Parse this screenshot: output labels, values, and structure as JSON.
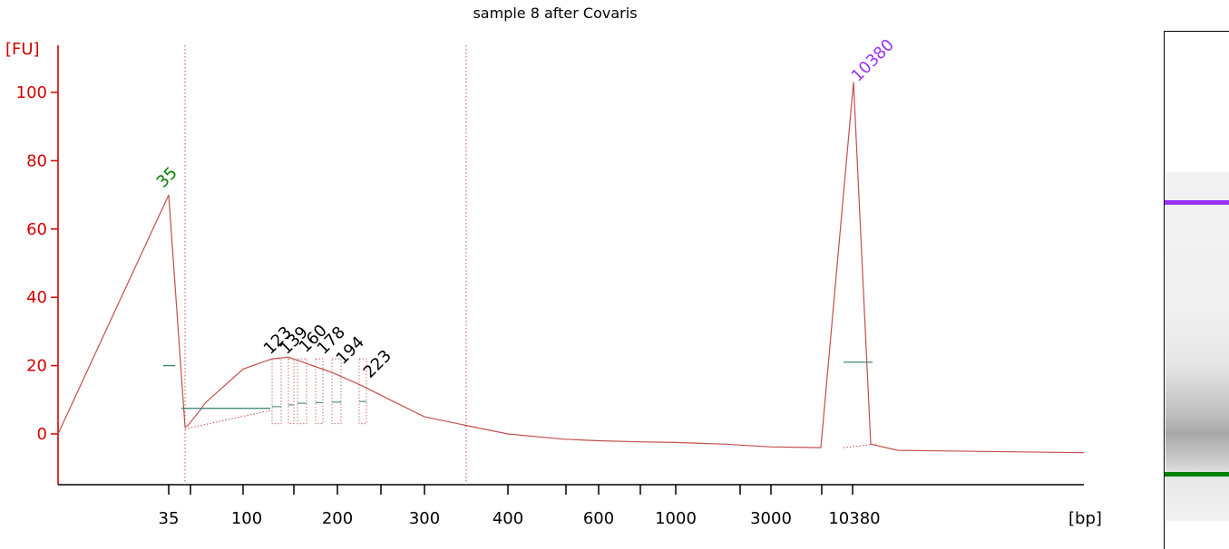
{
  "chart_data": {
    "type": "line",
    "title": "sample 8 after Covaris",
    "ylabel": "[FU]",
    "xlabel": "[bp]",
    "ylim": [
      -15,
      110
    ],
    "yticks": [
      0,
      20,
      40,
      60,
      80,
      100
    ],
    "xtick_labels": [
      "35",
      "100",
      "200",
      "300",
      "400",
      "600",
      "1000",
      "3000",
      "10380"
    ],
    "grid": false,
    "line_color": "#c0504d",
    "axis_color": "#d40000",
    "series": [
      {
        "x": [
          18,
          35,
          39,
          42,
          55,
          60,
          80,
          100,
          123,
          139,
          160,
          178,
          194,
          223,
          250,
          300,
          340,
          400,
          500,
          600,
          800,
          1000,
          2000,
          3000,
          5000,
          10380,
          12000,
          15000,
          20000
        ],
        "values": [
          0,
          70,
          2,
          2.5,
          7,
          9,
          14,
          19,
          22,
          22.5,
          21,
          19.5,
          18,
          14,
          10,
          5,
          2.5,
          0,
          -1.5,
          -2,
          -2.3,
          -2.5,
          -3,
          -3.8,
          -4,
          103,
          -3,
          -4.8,
          -5.5
        ]
      }
    ],
    "peaks": [
      {
        "label": "35",
        "x": 35,
        "y": 70,
        "color": "#008000"
      },
      {
        "label": "123",
        "x": 123,
        "y": 22,
        "color": "#000000"
      },
      {
        "label": "139",
        "x": 139,
        "y": 22.5,
        "color": "#000000"
      },
      {
        "label": "160",
        "x": 160,
        "y": 21,
        "color": "#000000"
      },
      {
        "label": "178",
        "x": 178,
        "y": 19.5,
        "color": "#000000"
      },
      {
        "label": "194",
        "x": 194,
        "y": 18,
        "color": "#000000"
      },
      {
        "label": "223",
        "x": 223,
        "y": 14,
        "color": "#000000"
      },
      {
        "label": "10380",
        "x": 10380,
        "y": 103,
        "color": "#9933ff"
      }
    ],
    "legend": "none"
  },
  "gel": {
    "upper_marker_color": "#9933ff",
    "lower_marker_color": "#008000"
  }
}
